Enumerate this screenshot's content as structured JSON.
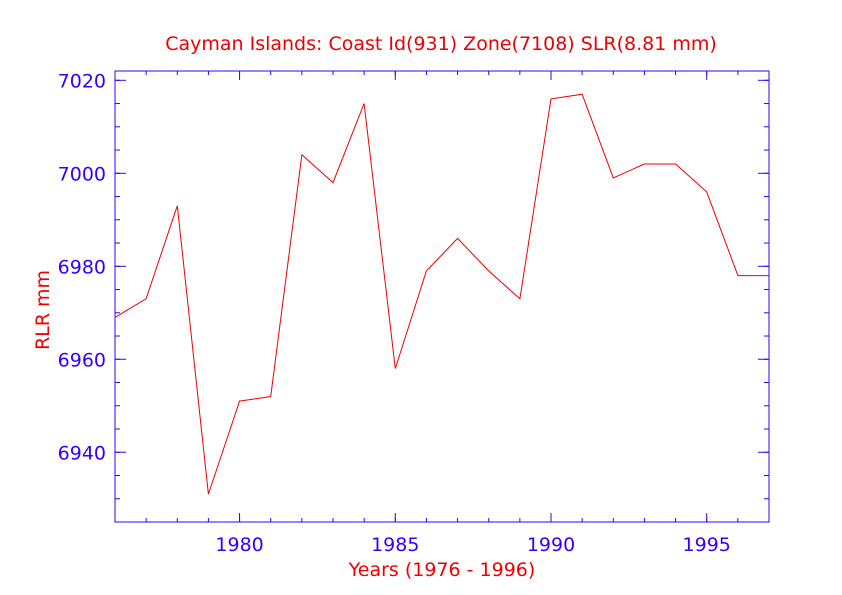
{
  "colors": {
    "axis": "#3300ff",
    "series": "#ee0000",
    "text": "#ee0000",
    "background": "#ffffff"
  },
  "chart_data": {
    "type": "line",
    "title": "Cayman Islands:  Coast Id(931) Zone(7108) SLR(8.81 mm)",
    "xlabel": "Years (1976 - 1996)",
    "ylabel": "RLR mm",
    "xlim": [
      1976,
      1997
    ],
    "ylim": [
      6925,
      7022
    ],
    "x_ticks": [
      1980,
      1985,
      1990,
      1995
    ],
    "y_ticks": [
      6940,
      6960,
      6980,
      7000,
      7020
    ],
    "grid": false,
    "series": [
      {
        "x": [
          1976,
          1977,
          1978,
          1979,
          1980,
          1981,
          1982,
          1983,
          1984,
          1985,
          1986,
          1987,
          1988,
          1989,
          1990,
          1991,
          1992,
          1993,
          1994,
          1995,
          1996,
          1997
        ],
        "y": [
          6969,
          6973,
          6993,
          6931,
          6951,
          6952,
          7004,
          6998,
          7015,
          6958,
          6979,
          6986,
          6979,
          6973,
          7016,
          7017,
          6999,
          7002,
          7002,
          6996,
          6978,
          6978
        ]
      }
    ]
  }
}
